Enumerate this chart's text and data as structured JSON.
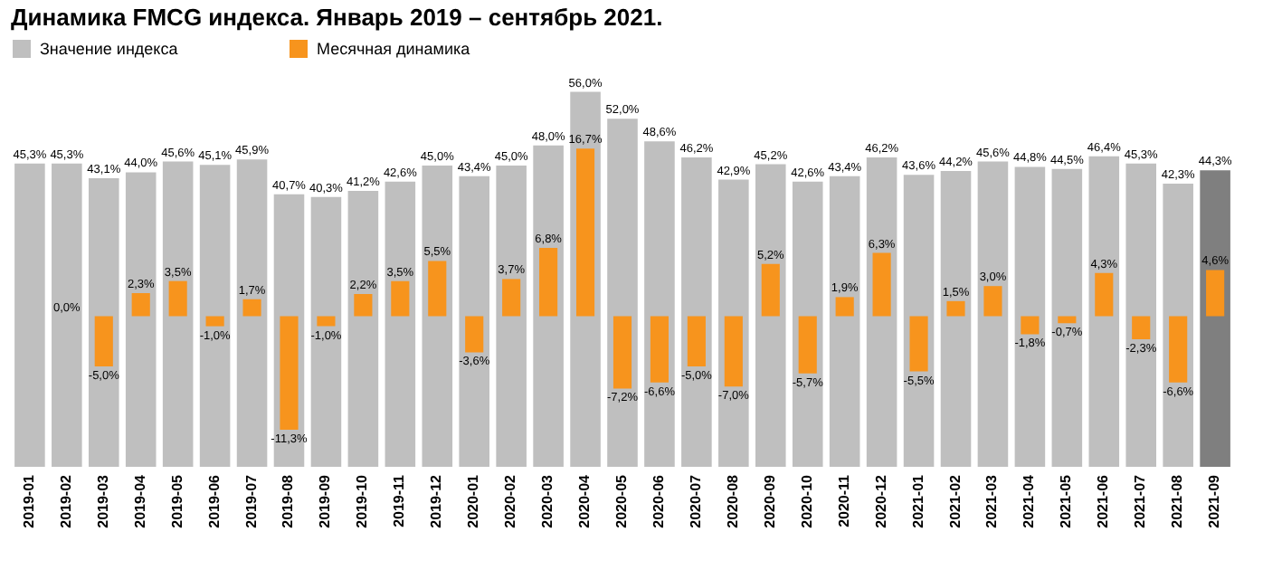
{
  "chart_data": {
    "type": "bar",
    "title": "Динамика FMCG индекса. Январь 2019 – сентябрь 2021.",
    "categories": [
      "2019-01",
      "2019-02",
      "2019-03",
      "2019-04",
      "2019-05",
      "2019-06",
      "2019-07",
      "2019-08",
      "2019-09",
      "2019-10",
      "2019-11",
      "2019-12",
      "2020-01",
      "2020-02",
      "2020-03",
      "2020-04",
      "2020-05",
      "2020-06",
      "2020-07",
      "2020-08",
      "2020-09",
      "2020-10",
      "2020-11",
      "2020-12",
      "2021-01",
      "2021-02",
      "2021-03",
      "2021-04",
      "2021-05",
      "2021-06",
      "2021-07",
      "2021-08",
      "2021-09"
    ],
    "series": [
      {
        "name": "Значение индекса",
        "color": "#bfbfbf",
        "colors": [
          "#bfbfbf",
          "#bfbfbf",
          "#bfbfbf",
          "#bfbfbf",
          "#bfbfbf",
          "#bfbfbf",
          "#bfbfbf",
          "#bfbfbf",
          "#bfbfbf",
          "#bfbfbf",
          "#bfbfbf",
          "#bfbfbf",
          "#bfbfbf",
          "#bfbfbf",
          "#bfbfbf",
          "#bfbfbf",
          "#bfbfbf",
          "#bfbfbf",
          "#bfbfbf",
          "#bfbfbf",
          "#bfbfbf",
          "#bfbfbf",
          "#bfbfbf",
          "#bfbfbf",
          "#bfbfbf",
          "#bfbfbf",
          "#bfbfbf",
          "#bfbfbf",
          "#bfbfbf",
          "#bfbfbf",
          "#bfbfbf",
          "#bfbfbf",
          "#7f7f7f"
        ],
        "values": [
          45.3,
          45.3,
          43.1,
          44.0,
          45.6,
          45.1,
          45.9,
          40.7,
          40.3,
          41.2,
          42.6,
          45.0,
          43.4,
          45.0,
          48.0,
          56.0,
          52.0,
          48.6,
          46.2,
          42.9,
          45.2,
          42.6,
          43.4,
          46.2,
          43.6,
          44.2,
          45.6,
          44.8,
          44.5,
          46.4,
          45.3,
          42.3,
          44.3
        ],
        "value_labels": [
          "45,3%",
          "45,3%",
          "43,1%",
          "44,0%",
          "45,6%",
          "45,1%",
          "45,9%",
          "40,7%",
          "40,3%",
          "41,2%",
          "42,6%",
          "45,0%",
          "43,4%",
          "45,0%",
          "48,0%",
          "56,0%",
          "52,0%",
          "48,6%",
          "46,2%",
          "42,9%",
          "45,2%",
          "42,6%",
          "43,4%",
          "46,2%",
          "43,6%",
          "44,2%",
          "45,6%",
          "44,8%",
          "44,5%",
          "46,4%",
          "45,3%",
          "42,3%",
          "44,3%"
        ]
      },
      {
        "name": "Месячная динамика",
        "color": "#f7941d",
        "axis": "y2",
        "values": [
          null,
          0.0,
          -5.0,
          2.3,
          3.5,
          -1.0,
          1.7,
          -11.3,
          -1.0,
          2.2,
          3.5,
          5.5,
          -3.6,
          3.7,
          6.8,
          16.7,
          -7.2,
          -6.6,
          -5.0,
          -7.0,
          5.2,
          -5.7,
          1.9,
          6.3,
          -5.5,
          1.5,
          3.0,
          -1.8,
          -0.7,
          4.3,
          -2.3,
          -6.6,
          4.6
        ],
        "value_labels": [
          null,
          "0,0%",
          "-5,0%",
          "2,3%",
          "3,5%",
          "-1,0%",
          "1,7%",
          "-11,3%",
          "-1,0%",
          "2,2%",
          "3,5%",
          "5,5%",
          "-3,6%",
          "3,7%",
          "6,8%",
          "16,7%",
          "-7,2%",
          "-6,6%",
          "-5,0%",
          "-7,0%",
          "5,2%",
          "-5,7%",
          "1,9%",
          "6,3%",
          "-5,5%",
          "1,5%",
          "3,0%",
          "-1,8%",
          "-0,7%",
          "4,3%",
          "-2,3%",
          "-6,6%",
          "4,6%"
        ]
      }
    ],
    "tick_labels": "x",
    "legend": "top left"
  }
}
